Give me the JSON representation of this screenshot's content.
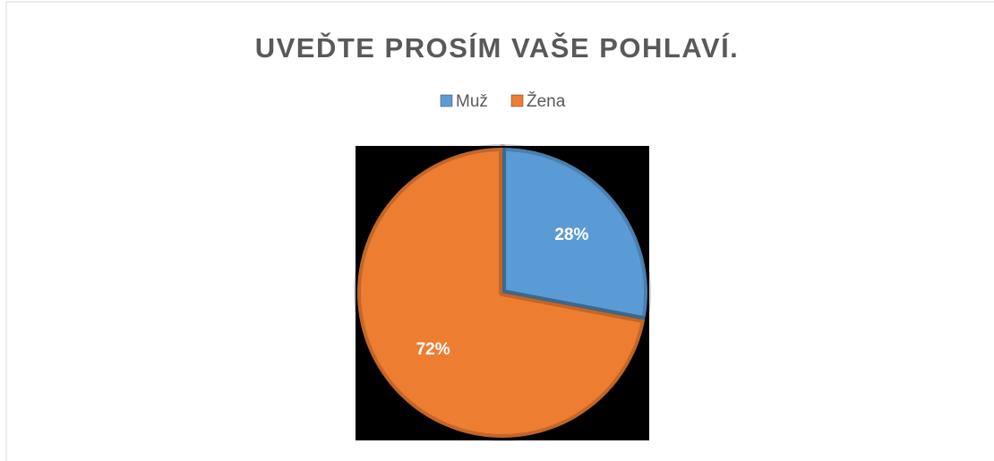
{
  "chart_data": {
    "type": "pie",
    "title": "UVEĎTE PROSÍM VAŠE POHLAVÍ.",
    "categories": [
      "Muž",
      "Žena"
    ],
    "values": [
      28,
      72
    ],
    "value_labels": [
      "28%",
      "72%"
    ],
    "colors": [
      "#5b9bd5",
      "#ed7d31"
    ],
    "legend": "top"
  }
}
